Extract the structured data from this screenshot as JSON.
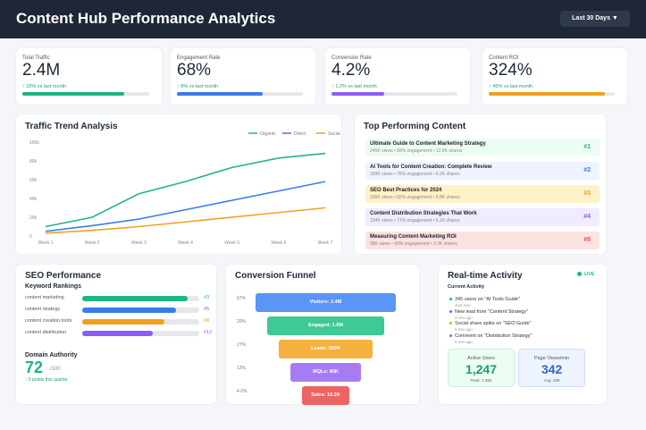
{
  "header": {
    "title": "Content Hub Performance Analytics",
    "range_label": "Last 30 Days ▼"
  },
  "kpis": [
    {
      "label": "Total Traffic",
      "value": "2.4M",
      "change": "↑ 32% vs last month",
      "progress": 80,
      "color": "#1db584"
    },
    {
      "label": "Engagement Rate",
      "value": "68%",
      "change": "↑ 8% vs last month",
      "progress": 68,
      "color": "#3b7be8"
    },
    {
      "label": "Conversion Rate",
      "value": "4.2%",
      "change": "↑ 1.2% vs last month",
      "progress": 42,
      "color": "#8b5cf6"
    },
    {
      "label": "Content ROI",
      "value": "324%",
      "change": "↑ 45% vs last month",
      "progress": 92,
      "color": "#f0a020"
    }
  ],
  "traffic": {
    "title": "Traffic Trend Analysis"
  },
  "chart_data": {
    "type": "line",
    "categories": [
      "Week 1",
      "Week 2",
      "Week 3",
      "Week 4",
      "Week 5",
      "Week 6",
      "Week 7"
    ],
    "yticks": [
      "0",
      "20k",
      "40k",
      "60k",
      "80k",
      "100k"
    ],
    "ylim": [
      0,
      100000
    ],
    "legend_position": "top-right",
    "series": [
      {
        "name": "Organic",
        "color": "#1db584",
        "values": [
          10000,
          20000,
          45000,
          58000,
          73000,
          83000,
          88000
        ]
      },
      {
        "name": "Direct",
        "color": "#3b7be8",
        "values": [
          5000,
          11000,
          18000,
          28000,
          38000,
          48000,
          58000
        ]
      },
      {
        "name": "Social",
        "color": "#f0a020",
        "values": [
          3000,
          6000,
          10000,
          15000,
          20000,
          25000,
          30000
        ]
      }
    ]
  },
  "top_content": {
    "title": "Top Performing Content",
    "items": [
      {
        "title": "Ultimate Guide to Content Marketing Strategy",
        "meta": "245K views • 89% engagement • 12.5K shares",
        "rank": "#1",
        "bg": "#ecfdf3",
        "color": "#1db584"
      },
      {
        "title": "AI Tools for Content Creation: Complete Review",
        "meta": "189K views • 76% engagement • 8.2K shares",
        "rank": "#2",
        "bg": "#eef4ff",
        "color": "#3b7be8"
      },
      {
        "title": "SEO Best Practices for 2024",
        "meta": "156K views • 82% engagement • 6.8K shares",
        "rank": "#3",
        "bg": "#fdf1c7",
        "color": "#f0a020"
      },
      {
        "title": "Content Distribution Strategies That Work",
        "meta": "134K views • 71% engagement • 5.1K shares",
        "rank": "#4",
        "bg": "#f1ebff",
        "color": "#8b5cf6"
      },
      {
        "title": "Measuring Content Marketing ROI",
        "meta": "98K views • 68% engagement • 3.2K shares",
        "rank": "#5",
        "bg": "#fde2e2",
        "color": "#e5484d"
      }
    ]
  },
  "seo": {
    "title": "SEO Performance",
    "subtitle": "Keyword Rankings",
    "keywords": [
      {
        "name": "content marketing",
        "rank": "#3",
        "progress": 90,
        "color": "#1db584"
      },
      {
        "name": "content strategy",
        "rank": "#5",
        "progress": 80,
        "color": "#3b7be8"
      },
      {
        "name": "content creation tools",
        "rank": "#8",
        "progress": 70,
        "color": "#f0a020"
      },
      {
        "name": "content distribution",
        "rank": "#12",
        "progress": 60,
        "color": "#8b5cf6"
      }
    ],
    "da_label": "Domain Authority",
    "da_value": "72",
    "da_max": "/100",
    "da_change": "↑ 5 points this quarter"
  },
  "funnel": {
    "title": "Conversion Funnel",
    "stages": [
      {
        "label": "Visitors: 2.4M",
        "pct": "67%",
        "color": "#5b95f5"
      },
      {
        "label": "Engaged: 1.6M",
        "pct": "20%",
        "color": "#3ec995"
      },
      {
        "label": "Leads: 320K",
        "pct": "27%",
        "color": "#f5b13d"
      },
      {
        "label": "MQLs: 85K",
        "pct": "12%",
        "color": "#a67cf5"
      },
      {
        "label": "Sales: 10.2K",
        "pct": "4.2%",
        "color": "#ec6464"
      }
    ]
  },
  "realtime": {
    "title": "Real-time Activity",
    "live": "LIVE",
    "subtitle": "Current Activity",
    "events": [
      {
        "text": "345 users on \"AI Tools Guide\"",
        "time": "Just now",
        "color": "#1db584"
      },
      {
        "text": "New lead from \"Content Strategy\"",
        "time": "2 min ago",
        "color": "#3b7be8"
      },
      {
        "text": "Social share spike on \"SEO Guide\"",
        "time": "5 min ago",
        "color": "#f0a020"
      },
      {
        "text": "Comment on \"Distribution Strategy\"",
        "time": "8 min ago",
        "color": "#8b5cf6"
      }
    ],
    "active": {
      "label": "Active Users",
      "value": "1,247",
      "sub": "Peak: 1,892"
    },
    "pageviews": {
      "label": "Page Views/min",
      "value": "342",
      "sub": "Avg: 298"
    }
  }
}
